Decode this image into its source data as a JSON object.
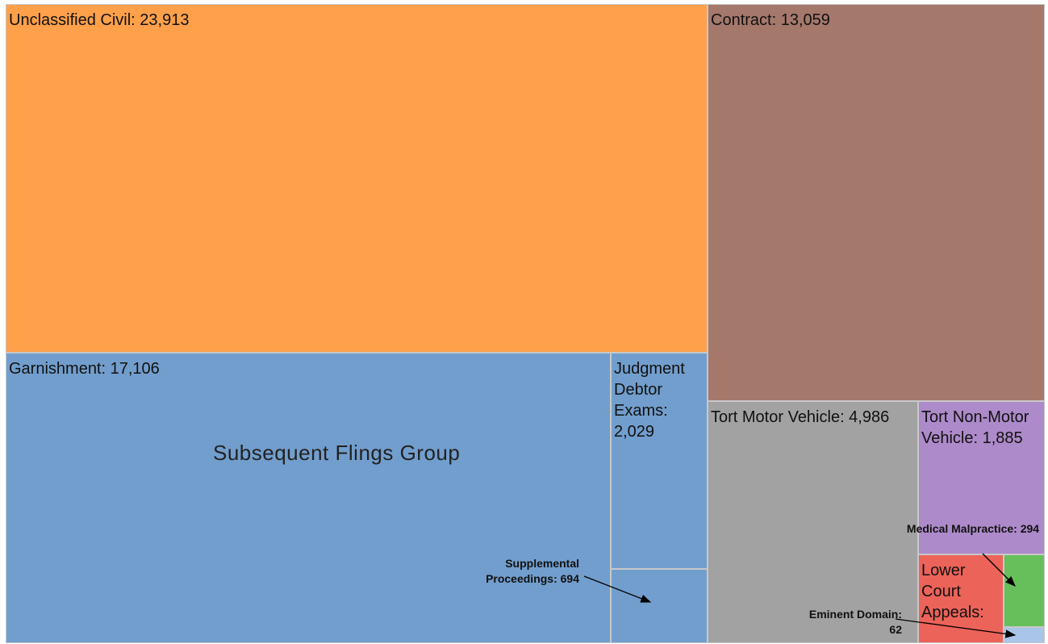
{
  "chart_data": {
    "type": "treemap",
    "group_label": "Subsequent Flings Group",
    "labels": [
      "Unclassified Civil: 23,913",
      "Contract: 13,059",
      "Garnishment: 17,106",
      "Judgment Debtor Exams: 2,029",
      "Supplemental Proceedings: 694",
      "Tort Motor Vehicle: 4,986",
      "Tort Non-Motor Vehicle: 1,885",
      "Lower Court Appeals:",
      "Medical Malpractice: 294",
      "Eminent Domain: 62"
    ],
    "values": [
      23913,
      13059,
      17106,
      2029,
      694,
      4986,
      1885,
      728,
      294,
      62
    ],
    "colors": [
      "#ffa04b",
      "#a5786c",
      "#729ecd",
      "#729ecd",
      "#729ecd",
      "#a2a2a2",
      "#ad8ac9",
      "#ec6359",
      "#67bf5c",
      "#a9c5e8"
    ]
  }
}
